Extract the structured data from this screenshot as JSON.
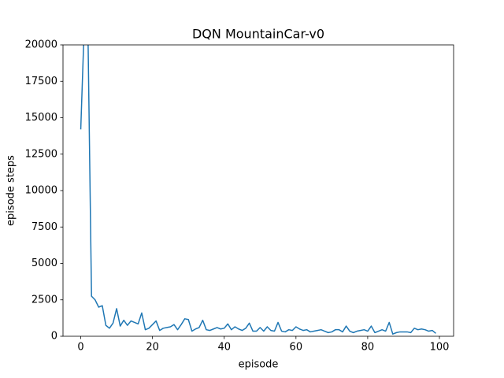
{
  "chart_data": {
    "type": "line",
    "title": "DQN MountainCar-v0",
    "xlabel": "episode",
    "ylabel": "episode steps",
    "x": [
      0,
      1,
      2,
      3,
      4,
      5,
      6,
      7,
      8,
      9,
      10,
      11,
      12,
      13,
      14,
      15,
      16,
      17,
      18,
      19,
      20,
      21,
      22,
      23,
      24,
      25,
      26,
      27,
      28,
      29,
      30,
      31,
      32,
      33,
      34,
      35,
      36,
      37,
      38,
      39,
      40,
      41,
      42,
      43,
      44,
      45,
      46,
      47,
      48,
      49,
      50,
      51,
      52,
      53,
      54,
      55,
      56,
      57,
      58,
      59,
      60,
      61,
      62,
      63,
      64,
      65,
      66,
      67,
      68,
      69,
      70,
      71,
      72,
      73,
      74,
      75,
      76,
      77,
      78,
      79,
      80,
      81,
      82,
      83,
      84,
      85,
      86,
      87,
      88,
      89,
      90,
      91,
      92,
      93,
      94,
      95,
      96,
      97,
      98,
      99
    ],
    "values": [
      14200,
      21500,
      21000,
      2750,
      2500,
      2000,
      2100,
      750,
      550,
      900,
      1900,
      700,
      1100,
      750,
      1050,
      950,
      850,
      1600,
      450,
      550,
      800,
      1050,
      400,
      550,
      600,
      650,
      800,
      450,
      800,
      1200,
      1150,
      350,
      500,
      600,
      1100,
      450,
      400,
      500,
      600,
      500,
      550,
      850,
      450,
      650,
      500,
      400,
      550,
      900,
      350,
      350,
      600,
      350,
      650,
      400,
      350,
      950,
      350,
      300,
      450,
      400,
      650,
      500,
      400,
      450,
      300,
      350,
      400,
      450,
      350,
      250,
      300,
      450,
      450,
      300,
      700,
      350,
      250,
      350,
      400,
      450,
      350,
      700,
      250,
      350,
      450,
      350,
      950,
      150,
      250,
      300,
      300,
      300,
      250,
      550,
      450,
      500,
      450,
      350,
      400,
      200
    ],
    "color": "#1f77b4",
    "xlim": [
      -4.95,
      103.95
    ],
    "xticks": [
      0,
      20,
      40,
      60,
      80,
      100
    ],
    "ylim": [
      0,
      20000
    ],
    "yticks": [
      0,
      2500,
      5000,
      7500,
      10000,
      12500,
      15000,
      17500,
      20000
    ]
  }
}
